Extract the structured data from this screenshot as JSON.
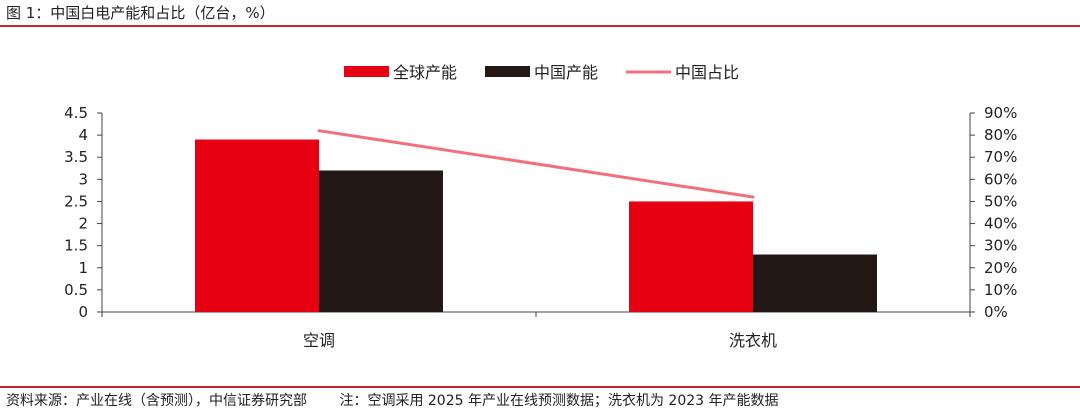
{
  "header": {
    "title": "图 1：中国白电产能和占比（亿台，%）"
  },
  "footer": {
    "source": "资料来源：产业在线（含预测），中信证券研究部",
    "note": "注：空调采用 2025 年产业在线预测数据；洗衣机为 2023 年产能数据"
  },
  "chart_data": {
    "type": "bar",
    "categories": [
      "空调",
      "洗衣机"
    ],
    "series": [
      {
        "name": "全球产能",
        "kind": "bar",
        "axis": "left",
        "color": "#e60012",
        "values": [
          3.9,
          2.5
        ]
      },
      {
        "name": "中国产能",
        "kind": "bar",
        "axis": "left",
        "color": "#231815",
        "values": [
          3.2,
          1.3
        ]
      },
      {
        "name": "中国占比",
        "kind": "line",
        "axis": "right",
        "color": "#f2707c",
        "values": [
          82,
          52
        ]
      }
    ],
    "left_axis": {
      "ylim": [
        0,
        4.5
      ],
      "ticks": [
        "0",
        "0.5",
        "1",
        "1.5",
        "2",
        "2.5",
        "3",
        "3.5",
        "4",
        "4.5"
      ]
    },
    "right_axis": {
      "ylim": [
        0,
        90
      ],
      "ticks": [
        "0%",
        "10%",
        "20%",
        "30%",
        "40%",
        "50%",
        "60%",
        "70%",
        "80%",
        "90%"
      ]
    },
    "legend_position": "top-center",
    "grid": false
  }
}
